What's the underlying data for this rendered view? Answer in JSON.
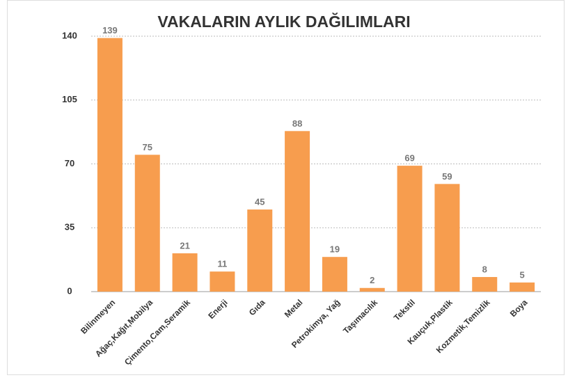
{
  "chart_data": {
    "type": "bar",
    "title": "VAKALARIN AYLIK DAĞILIMLARI",
    "categories": [
      "Bilinmeyen",
      "Ağaç,Kağıt,Mobilya",
      "Çimento,Cam,Seramik",
      "Enerji",
      "Gıda",
      "Metal",
      "Petrokimya, Yağ",
      "Taşımacılık",
      "Tekstil",
      "Kauçuk,Plastik",
      "Kozmetik,Temizlik",
      "Boya"
    ],
    "values": [
      139,
      75,
      21,
      11,
      45,
      88,
      19,
      2,
      69,
      59,
      8,
      5
    ],
    "color": "#f79d4e",
    "ylim": [
      0,
      140
    ],
    "yticks": [
      0,
      35,
      70,
      105,
      140
    ],
    "grid": true
  }
}
